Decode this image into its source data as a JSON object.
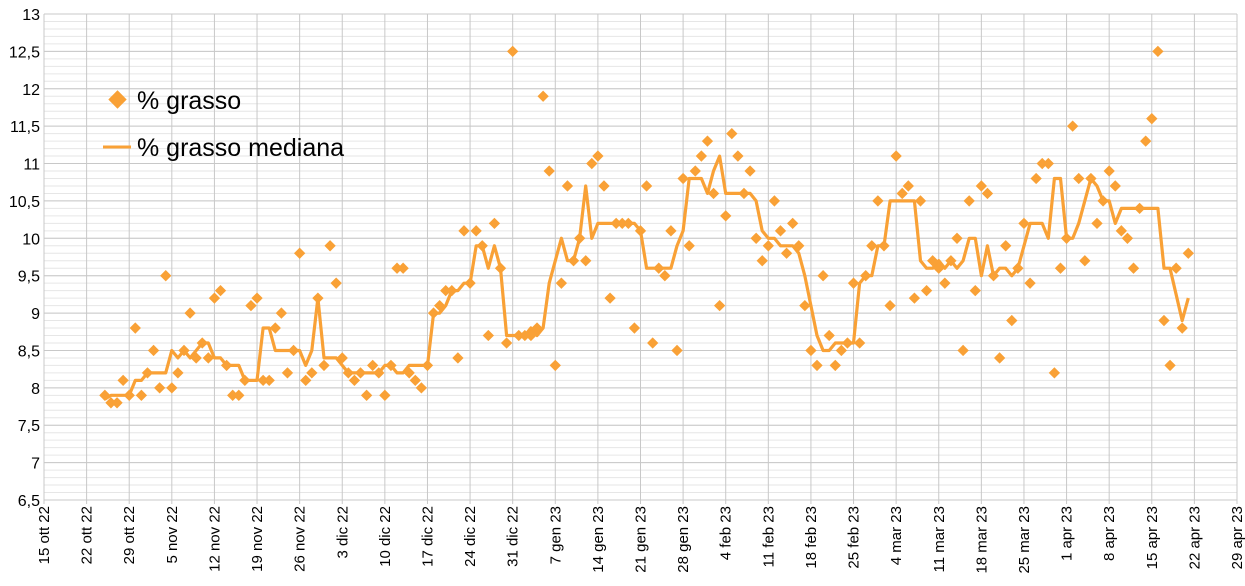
{
  "chart_data": {
    "type": "scatter",
    "title": "",
    "xlabel": "",
    "ylabel": "",
    "ylim": [
      6.5,
      13
    ],
    "y_major_step": 0.5,
    "y_minor_step": 0.1,
    "grid": true,
    "legend_position": "top-left",
    "x_unit": "days since 15 ott 22",
    "xlim": [
      0,
      196
    ],
    "x_tick_step_days": 7,
    "x_tick_labels": [
      "15 ott 22",
      "22 ott 22",
      "29 ott 22",
      "5 nov 22",
      "12 nov 22",
      "19 nov 22",
      "26 nov 22",
      "3 dic 22",
      "10 dic 22",
      "17 dic 22",
      "24 dic 22",
      "31 dic 22",
      "7 gen 23",
      "14 gen 23",
      "21 gen 23",
      "28 gen 23",
      "4 feb 23",
      "11 feb 23",
      "18 feb 23",
      "25 feb 23",
      "4 mar 23",
      "11 mar 23",
      "18 mar 23",
      "25 mar 23",
      "1 apr 23",
      "8 apr 23",
      "15 apr 23",
      "22 apr 23",
      "29 apr 23"
    ],
    "y_tick_labels": [
      "6,5",
      "7",
      "7,5",
      "8",
      "8,5",
      "9",
      "9,5",
      "10",
      "10,5",
      "11",
      "11,5",
      "12",
      "12,5",
      "13"
    ],
    "series": [
      {
        "name": "% grasso",
        "kind": "points",
        "color": "#F9A136",
        "x_start": 10,
        "values": [
          7.9,
          7.8,
          7.8,
          8.1,
          7.9,
          8.8,
          7.9,
          8.2,
          8.5,
          8.0,
          9.5,
          8.0,
          8.2,
          8.5,
          9.0,
          8.4,
          8.6,
          8.4,
          9.2,
          9.3,
          8.3,
          7.9,
          7.9,
          8.1,
          9.1,
          9.2,
          8.1,
          8.1,
          8.8,
          9.0,
          8.2,
          8.5,
          9.8,
          8.1,
          8.2,
          9.2,
          8.3,
          9.9,
          9.4,
          8.4,
          8.2,
          8.1,
          8.2,
          7.9,
          8.3,
          8.2,
          7.9,
          8.3,
          9.6,
          9.6,
          8.2,
          8.1,
          8.0,
          8.3,
          9.0,
          9.1,
          9.3,
          9.3,
          8.4,
          10.1,
          9.4,
          10.1,
          9.9,
          8.7,
          10.2,
          9.6,
          8.6,
          12.5,
          8.7,
          8.7,
          8.7,
          8.8,
          11.9,
          10.9,
          8.3,
          9.4,
          10.7,
          9.7,
          10.0,
          9.7,
          11.0,
          11.1,
          10.7,
          9.2,
          10.2,
          10.2,
          10.2,
          8.8,
          10.1,
          10.7,
          8.6,
          9.6,
          9.5,
          10.1,
          8.5,
          10.8,
          9.9,
          10.9,
          11.1,
          11.3,
          10.6,
          9.1,
          10.3,
          11.4,
          11.1,
          10.6,
          10.9,
          10.0,
          9.7,
          9.9,
          10.5,
          10.1,
          9.8,
          10.2,
          9.9,
          9.1,
          8.5,
          8.3,
          9.5,
          8.7,
          8.3,
          8.5,
          8.6,
          9.4,
          8.6,
          9.5,
          9.9,
          10.5,
          9.9,
          9.1,
          11.1,
          10.6,
          10.7,
          9.2,
          10.5,
          9.3,
          9.7,
          9.6,
          9.4,
          9.7,
          10.0,
          8.5,
          10.5,
          9.3,
          10.7,
          10.6,
          9.5,
          8.4,
          9.9,
          8.9,
          9.6,
          10.2,
          9.4,
          10.8,
          11.0,
          11.0,
          8.2,
          9.6,
          10.0,
          11.5,
          10.8,
          9.7,
          10.8,
          10.2,
          10.5,
          10.9,
          10.7,
          10.1,
          10.0,
          9.6,
          10.4,
          11.3,
          11.6,
          12.5,
          8.9,
          8.3,
          9.6,
          8.8,
          9.8
        ]
      },
      {
        "name": "% grasso mediana",
        "kind": "line",
        "color": "#F9A136",
        "median_window": 7
      }
    ]
  }
}
